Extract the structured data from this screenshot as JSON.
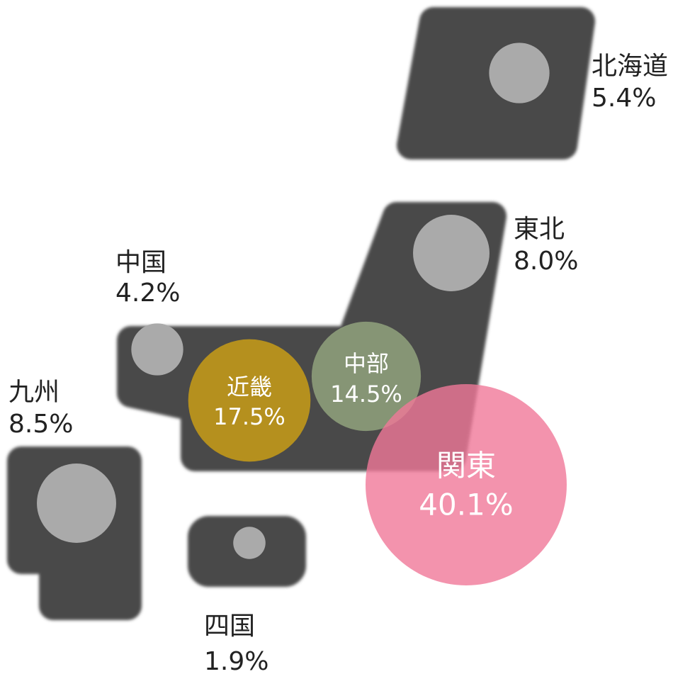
{
  "regions": [
    {
      "name": "北海道",
      "value": 5.4,
      "value_label": "5.4%",
      "color": "#aaaaaa"
    },
    {
      "name": "東北",
      "value": 8.0,
      "value_label": "8.0%",
      "color": "#aaaaaa"
    },
    {
      "name": "中国",
      "value": 4.2,
      "value_label": "4.2%",
      "color": "#aaaaaa"
    },
    {
      "name": "近畿",
      "value": 17.5,
      "value_label": "17.5%",
      "color": "#b5901e"
    },
    {
      "name": "中部",
      "value": 14.5,
      "value_label": "14.5%",
      "color": "#8a9a78"
    },
    {
      "name": "関東",
      "value": 40.1,
      "value_label": "40.1%",
      "color": "#f07898"
    },
    {
      "name": "九州",
      "value": 8.5,
      "value_label": "8.5%",
      "color": "#aaaaaa"
    },
    {
      "name": "四国",
      "value": 1.9,
      "value_label": "1.9%",
      "color": "#aaaaaa"
    }
  ]
}
